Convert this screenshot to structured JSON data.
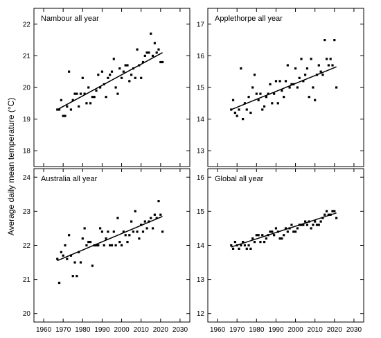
{
  "ylabel": "Average daily mean temperature (°C)",
  "chart_data": [
    {
      "type": "scatter",
      "title": "Nambour all year",
      "xlim": [
        1955,
        2035
      ],
      "ylim": [
        17.5,
        22.5
      ],
      "xticks": [
        1960,
        1970,
        1980,
        1990,
        2000,
        2010,
        2020,
        2030
      ],
      "yticks": [
        18,
        19,
        20,
        21,
        22
      ],
      "xticklabels": [],
      "trend": [
        [
          1967,
          19.3
        ],
        [
          2021,
          21.1
        ]
      ],
      "x": [
        1967,
        1968,
        1969,
        1970,
        1971,
        1972,
        1973,
        1974,
        1975,
        1976,
        1977,
        1978,
        1979,
        1980,
        1981,
        1982,
        1983,
        1984,
        1985,
        1986,
        1987,
        1988,
        1989,
        1990,
        1991,
        1992,
        1993,
        1994,
        1995,
        1996,
        1997,
        1998,
        1999,
        2000,
        2001,
        2002,
        2003,
        2004,
        2005,
        2006,
        2007,
        2008,
        2009,
        2010,
        2011,
        2012,
        2013,
        2014,
        2015,
        2016,
        2017,
        2018,
        2019,
        2020,
        2021
      ],
      "y": [
        19.3,
        19.3,
        19.6,
        19.1,
        19.1,
        19.4,
        20.5,
        19.3,
        19.6,
        19.8,
        19.8,
        19.4,
        19.8,
        20.3,
        19.8,
        19.5,
        20.0,
        19.5,
        19.7,
        19.7,
        19.9,
        20.4,
        20.0,
        20.5,
        20.1,
        19.7,
        20.3,
        20.4,
        20.5,
        20.9,
        20.0,
        19.8,
        20.6,
        20.3,
        20.5,
        20.7,
        20.7,
        20.2,
        20.4,
        20.6,
        20.3,
        21.2,
        20.7,
        20.3,
        20.8,
        21.0,
        21.1,
        21.1,
        21.7,
        21.0,
        21.4,
        21.1,
        21.2,
        20.8,
        20.8
      ]
    },
    {
      "type": "scatter",
      "title": "Applethorpe all year",
      "xlim": [
        1955,
        2035
      ],
      "ylim": [
        12.5,
        17.5
      ],
      "xticks": [
        1960,
        1970,
        1980,
        1990,
        2000,
        2010,
        2020,
        2030
      ],
      "yticks": [
        13,
        14,
        15,
        16,
        17
      ],
      "xticklabels": [],
      "trend": [
        [
          1967,
          14.3
        ],
        [
          2021,
          15.65
        ]
      ],
      "x": [
        1967,
        1968,
        1969,
        1970,
        1971,
        1972,
        1973,
        1974,
        1975,
        1976,
        1977,
        1978,
        1979,
        1980,
        1981,
        1982,
        1983,
        1984,
        1985,
        1986,
        1987,
        1988,
        1989,
        1990,
        1991,
        1992,
        1993,
        1994,
        1995,
        1996,
        1997,
        1998,
        1999,
        2000,
        2001,
        2002,
        2003,
        2004,
        2005,
        2006,
        2007,
        2008,
        2009,
        2010,
        2011,
        2012,
        2013,
        2014,
        2015,
        2016,
        2017,
        2018,
        2019,
        2020,
        2021
      ],
      "y": [
        14.3,
        14.6,
        14.2,
        14.1,
        14.3,
        15.6,
        14.0,
        14.5,
        14.3,
        14.7,
        14.2,
        15.0,
        15.4,
        14.8,
        14.6,
        14.8,
        14.3,
        14.4,
        14.7,
        14.8,
        15.1,
        14.5,
        14.8,
        15.2,
        14.5,
        15.2,
        14.9,
        14.7,
        15.2,
        15.7,
        15.0,
        15.1,
        15.1,
        15.6,
        15.0,
        15.3,
        15.9,
        15.2,
        15.4,
        15.6,
        14.7,
        15.9,
        15.0,
        14.6,
        15.4,
        15.7,
        15.5,
        15.4,
        16.5,
        15.9,
        15.7,
        15.9,
        15.7,
        16.5,
        15.0
      ]
    },
    {
      "type": "scatter",
      "title": "Australia all year",
      "xlim": [
        1955,
        2035
      ],
      "ylim": [
        19.75,
        24.25
      ],
      "xticks": [
        1960,
        1970,
        1980,
        1990,
        2000,
        2010,
        2020,
        2030
      ],
      "yticks": [
        20,
        21,
        22,
        23,
        24
      ],
      "xticklabels": [
        "1960",
        "1970",
        "1980",
        "1990",
        "2000",
        "2010",
        "2020",
        "2030"
      ],
      "trend": [
        [
          1967,
          21.55
        ],
        [
          2021,
          22.85
        ]
      ],
      "x": [
        1967,
        1968,
        1969,
        1970,
        1971,
        1972,
        1973,
        1974,
        1975,
        1976,
        1977,
        1978,
        1979,
        1980,
        1981,
        1982,
        1983,
        1984,
        1985,
        1986,
        1987,
        1988,
        1989,
        1990,
        1991,
        1992,
        1993,
        1994,
        1995,
        1996,
        1997,
        1998,
        1999,
        2000,
        2001,
        2002,
        2003,
        2004,
        2005,
        2006,
        2007,
        2008,
        2009,
        2010,
        2011,
        2012,
        2013,
        2014,
        2015,
        2016,
        2017,
        2018,
        2019,
        2020,
        2021
      ],
      "y": [
        21.6,
        20.9,
        21.8,
        21.7,
        22.0,
        21.6,
        22.3,
        21.7,
        21.1,
        21.5,
        21.1,
        21.8,
        21.5,
        22.2,
        22.5,
        22.0,
        22.1,
        22.1,
        21.4,
        22.0,
        22.0,
        22.0,
        22.5,
        22.4,
        22.0,
        22.2,
        22.4,
        22.0,
        22.0,
        22.4,
        22.0,
        22.8,
        22.1,
        22.0,
        22.4,
        22.3,
        22.1,
        22.3,
        22.7,
        22.4,
        23.0,
        22.4,
        22.2,
        22.6,
        22.4,
        22.7,
        22.5,
        22.7,
        22.8,
        22.5,
        22.9,
        22.8,
        23.3,
        22.9,
        22.4
      ]
    },
    {
      "type": "scatter",
      "title": "Global all year",
      "xlim": [
        1955,
        2035
      ],
      "ylim": [
        11.75,
        16.25
      ],
      "xticks": [
        1960,
        1970,
        1980,
        1990,
        2000,
        2010,
        2020,
        2030
      ],
      "yticks": [
        12,
        13,
        14,
        15,
        16
      ],
      "xticklabels": [
        "1960",
        "1970",
        "1980",
        "1990",
        "2000",
        "2010",
        "2020",
        "2030"
      ],
      "trend": [
        [
          1967,
          13.95
        ],
        [
          2021,
          14.95
        ]
      ],
      "x": [
        1967,
        1968,
        1969,
        1970,
        1971,
        1972,
        1973,
        1974,
        1975,
        1976,
        1977,
        1978,
        1979,
        1980,
        1981,
        1982,
        1983,
        1984,
        1985,
        1986,
        1987,
        1988,
        1989,
        1990,
        1991,
        1992,
        1993,
        1994,
        1995,
        1996,
        1997,
        1998,
        1999,
        2000,
        2001,
        2002,
        2003,
        2004,
        2005,
        2006,
        2007,
        2008,
        2009,
        2010,
        2011,
        2012,
        2013,
        2014,
        2015,
        2016,
        2017,
        2018,
        2019,
        2020,
        2021
      ],
      "y": [
        14.0,
        13.9,
        14.1,
        14.0,
        13.9,
        14.0,
        14.1,
        14.0,
        13.9,
        14.0,
        13.9,
        14.2,
        14.1,
        14.3,
        14.3,
        14.1,
        14.3,
        14.1,
        14.2,
        14.3,
        14.4,
        14.4,
        14.3,
        14.5,
        14.4,
        14.2,
        14.2,
        14.3,
        14.5,
        14.4,
        14.5,
        14.6,
        14.4,
        14.4,
        14.5,
        14.6,
        14.6,
        14.6,
        14.7,
        14.6,
        14.7,
        14.5,
        14.6,
        14.7,
        14.6,
        14.6,
        14.7,
        14.8,
        14.9,
        15.0,
        14.9,
        14.9,
        15.0,
        15.0,
        14.8
      ]
    }
  ]
}
